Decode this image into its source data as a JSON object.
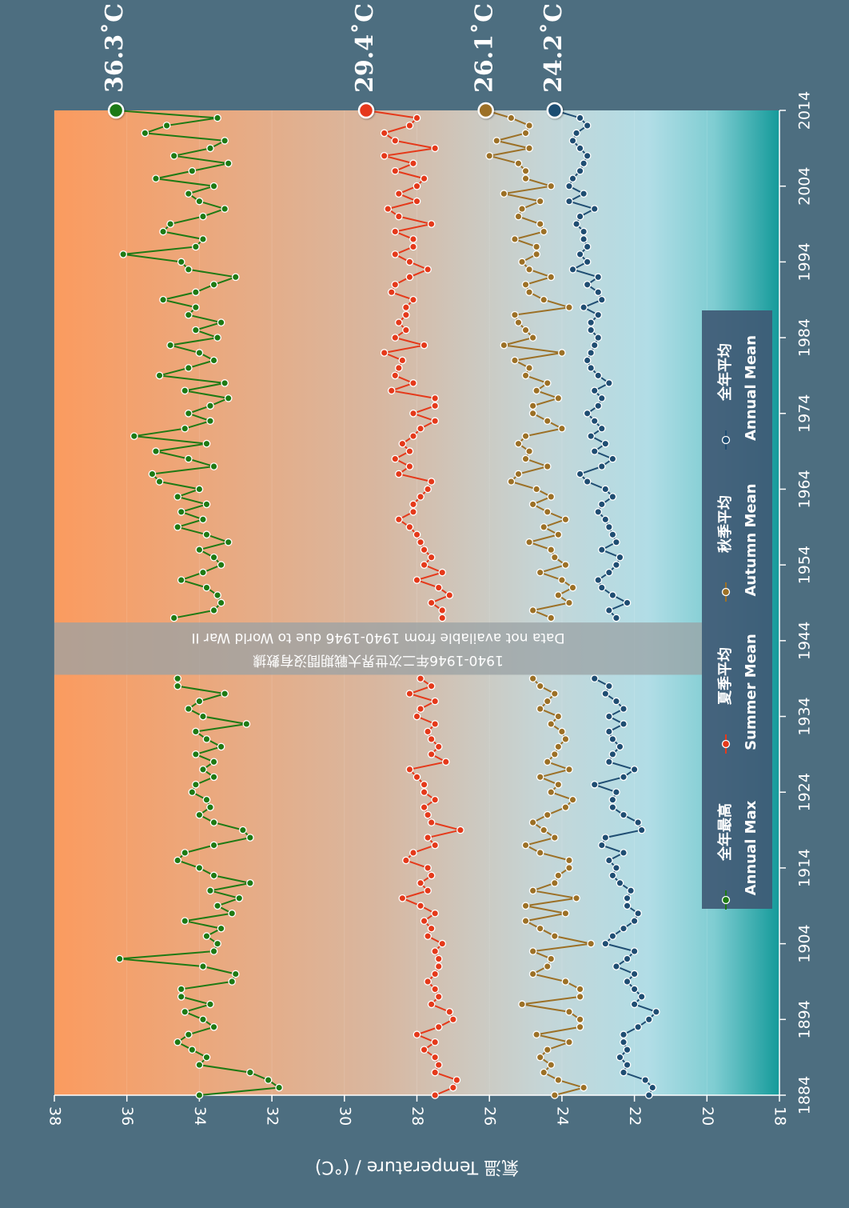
{
  "chart_data": {
    "type": "line",
    "ylabel": "氣溫 Temperature / (°C)",
    "ylim": [
      18,
      38
    ],
    "xlim": [
      1884,
      2014
    ],
    "xticks": [
      1884,
      1894,
      1904,
      1914,
      1924,
      1934,
      1944,
      1954,
      1964,
      1974,
      1984,
      1994,
      2004,
      2014
    ],
    "yticks": [
      18,
      20,
      22,
      24,
      26,
      28,
      30,
      32,
      34,
      36,
      38
    ],
    "gap": {
      "start": 1940,
      "end": 1946,
      "text_zh": "1940-1946年二次世界大戰期間沒有數據",
      "text_en": "Data not available from 1940-1946 due to World War II"
    },
    "legend_position": "bottom",
    "x": [
      1884,
      1885,
      1886,
      1887,
      1888,
      1889,
      1890,
      1891,
      1892,
      1893,
      1894,
      1895,
      1896,
      1897,
      1898,
      1899,
      1900,
      1901,
      1902,
      1903,
      1904,
      1905,
      1906,
      1907,
      1908,
      1909,
      1910,
      1911,
      1912,
      1913,
      1914,
      1915,
      1916,
      1917,
      1918,
      1919,
      1920,
      1921,
      1922,
      1923,
      1924,
      1925,
      1926,
      1927,
      1928,
      1929,
      1930,
      1931,
      1932,
      1933,
      1934,
      1935,
      1936,
      1937,
      1938,
      1939,
      1947,
      1948,
      1949,
      1950,
      1951,
      1952,
      1953,
      1954,
      1955,
      1956,
      1957,
      1958,
      1959,
      1960,
      1961,
      1962,
      1963,
      1964,
      1965,
      1966,
      1967,
      1968,
      1969,
      1970,
      1971,
      1972,
      1973,
      1974,
      1975,
      1976,
      1977,
      1978,
      1979,
      1980,
      1981,
      1982,
      1983,
      1984,
      1985,
      1986,
      1987,
      1988,
      1989,
      1990,
      1991,
      1992,
      1993,
      1994,
      1995,
      1996,
      1997,
      1998,
      1999,
      2000,
      2001,
      2002,
      2003,
      2004,
      2005,
      2006,
      2007,
      2008,
      2009,
      2010,
      2011,
      2012,
      2013,
      2014
    ],
    "series": [
      {
        "name": "全年最高 Annual Max",
        "color": "#1e7a14",
        "end_label": "36.3˚C",
        "values": [
          34.0,
          31.8,
          32.1,
          32.6,
          34.0,
          33.8,
          34.2,
          34.6,
          34.3,
          33.6,
          33.9,
          34.4,
          33.7,
          34.5,
          34.5,
          33.1,
          33.0,
          33.9,
          36.2,
          33.6,
          33.5,
          33.8,
          33.4,
          34.4,
          33.1,
          33.5,
          32.9,
          33.7,
          32.6,
          33.6,
          34.0,
          34.6,
          34.4,
          33.6,
          32.6,
          32.8,
          33.6,
          34.0,
          33.7,
          33.8,
          34.2,
          34.1,
          33.6,
          33.9,
          33.6,
          34.1,
          33.4,
          33.8,
          34.1,
          32.7,
          33.9,
          34.3,
          34.0,
          33.3,
          34.6,
          34.6,
          34.7,
          33.6,
          33.4,
          33.5,
          33.8,
          34.5,
          33.9,
          33.4,
          33.6,
          34.0,
          33.2,
          33.8,
          34.6,
          33.9,
          34.5,
          33.8,
          34.6,
          34.0,
          35.1,
          35.3,
          33.6,
          34.3,
          35.2,
          33.8,
          35.8,
          34.4,
          33.7,
          34.3,
          33.7,
          33.2,
          34.4,
          33.3,
          35.1,
          34.3,
          33.6,
          34.0,
          34.8,
          33.5,
          34.1,
          33.4,
          34.3,
          34.1,
          35.0,
          34.1,
          33.6,
          33.0,
          34.3,
          34.5,
          36.1,
          34.1,
          33.9,
          35.0,
          34.8,
          33.9,
          33.3,
          34.0,
          34.3,
          33.6,
          35.2,
          34.2,
          33.2,
          34.7,
          33.7,
          33.3,
          35.5,
          34.9,
          33.5,
          36.3
        ]
      },
      {
        "name": "夏季平均 Summer Mean",
        "color": "#e5391a",
        "end_label": "29.4˚C",
        "values": [
          27.5,
          27.0,
          26.9,
          27.5,
          27.4,
          27.5,
          27.8,
          27.5,
          28.0,
          27.4,
          27.0,
          27.1,
          27.6,
          27.4,
          27.5,
          27.7,
          27.5,
          27.4,
          27.4,
          27.5,
          27.3,
          27.7,
          27.6,
          27.8,
          27.5,
          27.9,
          28.4,
          27.7,
          27.9,
          27.6,
          27.7,
          28.3,
          28.1,
          27.5,
          27.7,
          26.8,
          27.6,
          27.7,
          27.8,
          27.5,
          27.8,
          27.8,
          28.0,
          28.2,
          27.2,
          27.6,
          27.4,
          27.6,
          27.7,
          27.5,
          28.0,
          27.9,
          27.5,
          28.2,
          27.6,
          27.9,
          27.3,
          27.3,
          27.6,
          27.1,
          27.4,
          28.0,
          27.3,
          27.8,
          27.6,
          27.8,
          27.9,
          28.0,
          28.2,
          28.5,
          28.1,
          28.1,
          27.9,
          27.7,
          27.6,
          28.5,
          28.2,
          28.6,
          28.2,
          28.4,
          28.1,
          27.9,
          27.5,
          28.1,
          27.5,
          27.5,
          28.7,
          28.1,
          28.6,
          28.5,
          28.4,
          28.9,
          27.8,
          28.6,
          28.3,
          28.5,
          28.3,
          28.3,
          28.1,
          28.7,
          28.6,
          28.2,
          27.7,
          28.2,
          28.6,
          28.1,
          28.1,
          28.6,
          27.6,
          28.5,
          28.8,
          28.0,
          28.5,
          28.0,
          27.8,
          28.6,
          28.1,
          28.9,
          27.5,
          28.6,
          28.9,
          28.2,
          28.0,
          29.4
        ]
      },
      {
        "name": "秋季平均 Autumn Mean",
        "color": "#9c7026",
        "end_label": "26.1˚C",
        "values": [
          24.2,
          23.4,
          24.1,
          24.5,
          24.3,
          24.6,
          24.4,
          23.8,
          24.7,
          23.5,
          23.5,
          23.8,
          25.1,
          23.5,
          23.5,
          23.9,
          24.8,
          24.4,
          24.3,
          24.8,
          23.2,
          24.2,
          24.6,
          25.0,
          23.9,
          25.0,
          23.6,
          24.8,
          24.2,
          24.1,
          23.8,
          23.8,
          24.6,
          25.0,
          24.2,
          24.5,
          24.8,
          24.4,
          23.9,
          23.7,
          24.3,
          24.1,
          24.6,
          23.8,
          24.4,
          24.2,
          24.1,
          23.9,
          24.0,
          24.3,
          24.1,
          24.6,
          24.4,
          24.2,
          24.6,
          24.8,
          24.3,
          24.8,
          23.8,
          24.1,
          23.7,
          24.0,
          24.6,
          23.9,
          24.2,
          24.3,
          24.9,
          24.1,
          24.5,
          23.9,
          24.4,
          24.8,
          24.3,
          24.7,
          25.4,
          25.2,
          24.4,
          25.0,
          24.9,
          25.2,
          25.0,
          24.0,
          24.4,
          24.8,
          24.8,
          24.1,
          24.7,
          24.4,
          25.0,
          24.9,
          25.3,
          24.0,
          25.6,
          24.8,
          25.0,
          25.2,
          25.3,
          23.8,
          24.5,
          24.9,
          25.0,
          24.3,
          24.9,
          25.1,
          24.7,
          24.7,
          25.3,
          24.5,
          24.6,
          25.2,
          25.1,
          24.6,
          25.6,
          24.3,
          25.0,
          25.0,
          25.2,
          26.0,
          24.9,
          25.8,
          25.0,
          24.9,
          25.4,
          26.1
        ]
      },
      {
        "name": "全年平均 Annual Mean",
        "color": "#1f4d72",
        "end_label": "24.2˚C",
        "values": [
          21.6,
          21.5,
          21.7,
          22.3,
          22.2,
          22.4,
          22.2,
          22.3,
          22.3,
          21.9,
          21.6,
          21.4,
          22.0,
          21.8,
          22.0,
          22.2,
          22.0,
          22.5,
          22.2,
          22.0,
          22.8,
          22.6,
          22.3,
          22.0,
          21.9,
          22.2,
          22.2,
          22.1,
          22.4,
          22.6,
          22.5,
          22.7,
          22.3,
          22.9,
          22.8,
          21.8,
          21.9,
          22.3,
          22.6,
          22.6,
          22.5,
          23.1,
          22.3,
          22.0,
          22.7,
          22.6,
          22.4,
          22.6,
          22.7,
          22.3,
          22.7,
          22.3,
          22.5,
          22.8,
          22.7,
          23.1,
          22.5,
          22.7,
          22.2,
          22.6,
          22.9,
          23.0,
          22.7,
          22.5,
          22.4,
          22.9,
          22.5,
          22.6,
          22.7,
          22.8,
          23.0,
          22.9,
          22.6,
          22.8,
          23.3,
          23.5,
          22.9,
          22.6,
          23.1,
          22.8,
          23.2,
          22.9,
          23.1,
          23.3,
          23.0,
          22.9,
          23.1,
          22.7,
          23.0,
          23.2,
          23.3,
          23.2,
          23.1,
          23.0,
          23.2,
          23.2,
          23.0,
          23.4,
          22.9,
          23.0,
          23.3,
          23.0,
          23.7,
          23.3,
          23.5,
          23.3,
          23.4,
          23.4,
          23.6,
          23.5,
          23.1,
          23.8,
          23.4,
          23.8,
          23.7,
          23.5,
          23.4,
          23.3,
          23.5,
          23.7,
          23.6,
          23.3,
          23.5,
          24.2
        ]
      }
    ]
  }
}
